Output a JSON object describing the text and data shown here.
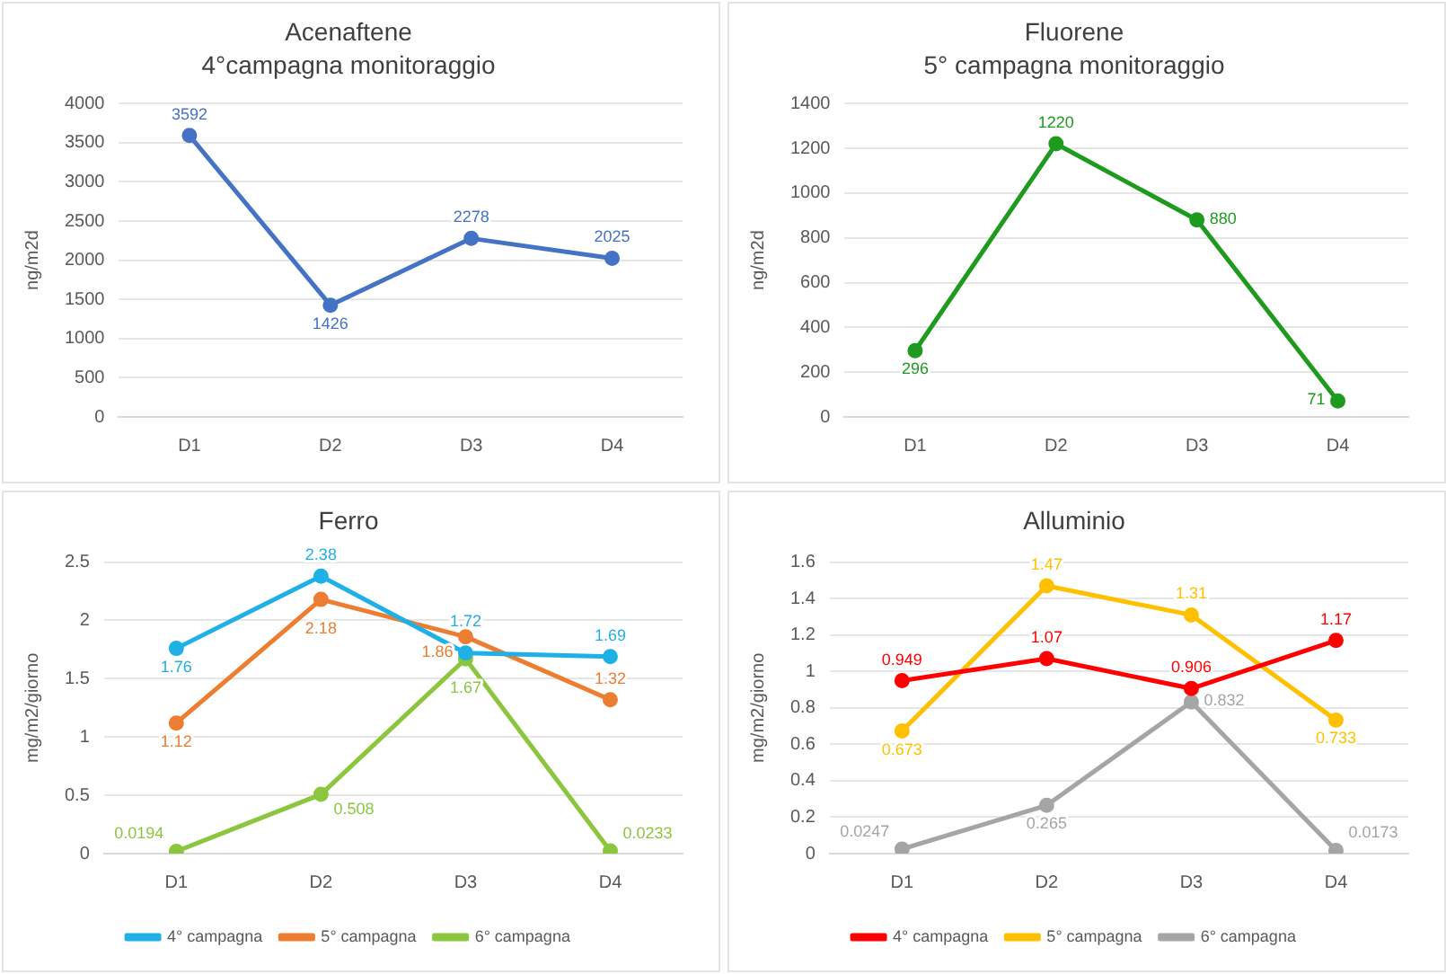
{
  "chart_data": [
    {
      "type": "line",
      "title": "Acenaftene",
      "subtitle": "4°campagna monitoraggio",
      "ylabel": "ng/m2d",
      "categories": [
        "D1",
        "D2",
        "D3",
        "D4"
      ],
      "series": [
        {
          "color": "#4472c4",
          "values": [
            3592,
            1426,
            2278,
            2025
          ]
        }
      ],
      "ylim": [
        0,
        4000
      ],
      "yticks": [
        0,
        500,
        1000,
        1500,
        2000,
        2500,
        3000,
        3500,
        4000
      ],
      "grid": "y",
      "legend": false,
      "marker": "circle",
      "data_labels": true
    },
    {
      "type": "line",
      "title": "Fluorene",
      "subtitle": "5° campagna monitoraggio",
      "ylabel": "ng/m2d",
      "categories": [
        "D1",
        "D2",
        "D3",
        "D4"
      ],
      "series": [
        {
          "color": "#1e9a1e",
          "values": [
            296,
            1220,
            880,
            71
          ]
        }
      ],
      "ylim": [
        0,
        1400
      ],
      "yticks": [
        0,
        200,
        400,
        600,
        800,
        1000,
        1200,
        1400
      ],
      "grid": "y",
      "legend": false,
      "marker": "circle",
      "data_labels": true
    },
    {
      "type": "line",
      "title": "Ferro",
      "ylabel": "mg/m2/giorno",
      "categories": [
        "D1",
        "D2",
        "D3",
        "D4"
      ],
      "series": [
        {
          "name": "4° campagna",
          "color": "#1fb0e6",
          "values": [
            1.76,
            2.38,
            1.72,
            1.69
          ]
        },
        {
          "name": "5° campagna",
          "color": "#ed7d31",
          "values": [
            1.12,
            2.18,
            1.86,
            1.32
          ]
        },
        {
          "name": "6° campagna",
          "color": "#8cc63f",
          "values": [
            0.0194,
            0.508,
            1.67,
            0.0233
          ]
        }
      ],
      "ylim": [
        0,
        2.5
      ],
      "yticks": [
        0,
        0.5,
        1,
        1.5,
        2,
        2.5
      ],
      "grid": "y",
      "legend": "bottom",
      "marker": "circle",
      "data_labels": true
    },
    {
      "type": "line",
      "title": "Alluminio",
      "ylabel": "mg/m2/giorno",
      "categories": [
        "D1",
        "D2",
        "D3",
        "D4"
      ],
      "series": [
        {
          "name": "4° campagna",
          "color": "#ff0000",
          "values": [
            0.949,
            1.07,
            0.906,
            1.17
          ]
        },
        {
          "name": "5° campagna",
          "color": "#ffc000",
          "values": [
            0.673,
            1.47,
            1.31,
            0.733
          ]
        },
        {
          "name": "6° campagna",
          "color": "#a5a5a5",
          "values": [
            0.0247,
            0.265,
            0.832,
            0.0173
          ]
        }
      ],
      "ylim": [
        0,
        1.6
      ],
      "yticks": [
        0,
        0.2,
        0.4,
        0.6,
        0.8,
        1,
        1.2,
        1.4,
        1.6
      ],
      "grid": "y",
      "legend": "bottom",
      "marker": "circle",
      "data_labels": true
    }
  ]
}
